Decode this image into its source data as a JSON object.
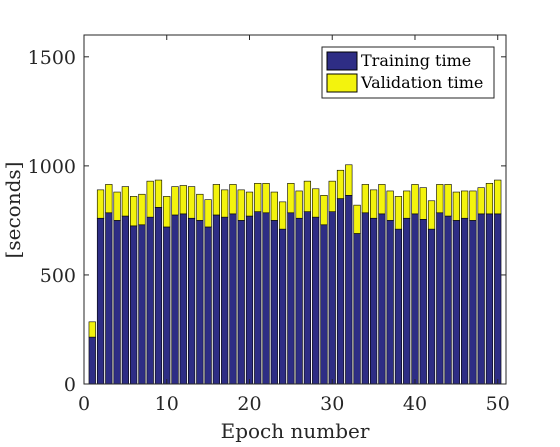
{
  "chart_data": {
    "type": "bar",
    "stacked": true,
    "xlabel": "Epoch number",
    "ylabel": "[seconds]",
    "xlim": [
      0,
      51
    ],
    "ylim": [
      0,
      1600
    ],
    "x": [
      1,
      2,
      3,
      4,
      5,
      6,
      7,
      8,
      9,
      10,
      11,
      12,
      13,
      14,
      15,
      16,
      17,
      18,
      19,
      20,
      21,
      22,
      23,
      24,
      25,
      26,
      27,
      28,
      29,
      30,
      31,
      32,
      33,
      34,
      35,
      36,
      37,
      38,
      39,
      40,
      41,
      42,
      43,
      44,
      45,
      46,
      47,
      48,
      49,
      50
    ],
    "xticks": [
      0,
      10,
      20,
      30,
      40,
      50
    ],
    "yticks": [
      0,
      500,
      1000,
      1500
    ],
    "series": [
      {
        "name": "Training time",
        "color": "#2e2d85",
        "values": [
          215,
          760,
          785,
          750,
          770,
          725,
          730,
          765,
          810,
          720,
          775,
          780,
          760,
          750,
          720,
          775,
          765,
          780,
          750,
          770,
          790,
          785,
          750,
          710,
          785,
          760,
          790,
          765,
          730,
          790,
          850,
          865,
          690,
          785,
          760,
          780,
          750,
          710,
          760,
          780,
          755,
          710,
          785,
          770,
          750,
          760,
          750,
          780,
          780,
          780
        ]
      },
      {
        "name": "Validation time",
        "color": "#f3f30d",
        "values": [
          70,
          130,
          130,
          130,
          135,
          135,
          140,
          165,
          125,
          140,
          130,
          130,
          145,
          120,
          125,
          140,
          125,
          135,
          140,
          110,
          130,
          135,
          130,
          125,
          135,
          125,
          140,
          130,
          135,
          140,
          130,
          140,
          130,
          130,
          130,
          135,
          135,
          150,
          125,
          135,
          145,
          130,
          130,
          145,
          130,
          125,
          135,
          120,
          140,
          155
        ]
      }
    ],
    "legend": {
      "position": "top-right",
      "entries": [
        "Training time",
        "Validation time"
      ]
    },
    "grid": false
  }
}
